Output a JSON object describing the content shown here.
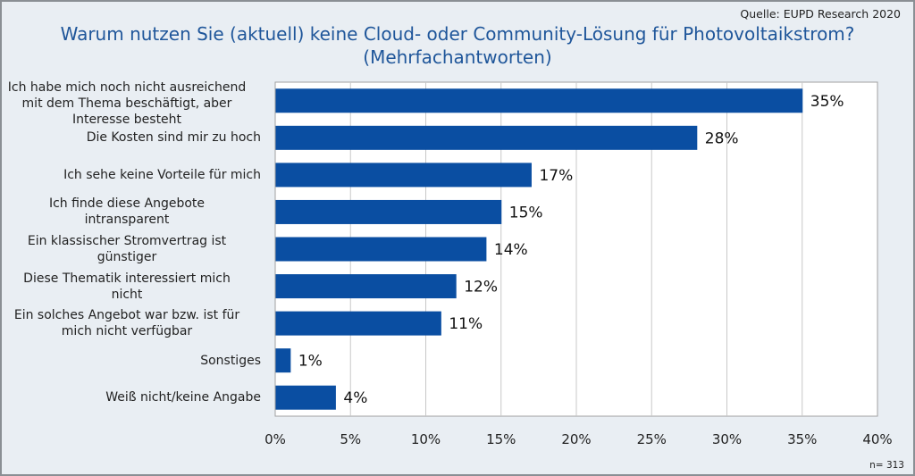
{
  "chart_data": {
    "type": "bar",
    "orientation": "horizontal",
    "title": "Warum nutzen Sie (aktuell) keine Cloud- oder Community-Lösung für Photovoltaikstrom?",
    "subtitle": "(Mehrfachantworten)",
    "source": "Quelle:  EUPD Research 2020",
    "note": "n= 313",
    "categories": [
      [
        "Ich habe mich noch nicht ausreichend",
        "mit dem Thema beschäftigt, aber",
        "Interesse besteht"
      ],
      [
        "Die Kosten sind mir zu hoch"
      ],
      [
        "Ich sehe keine Vorteile für mich"
      ],
      [
        "Ich finde diese Angebote",
        "intransparent"
      ],
      [
        "Ein klassischer Stromvertrag ist",
        "günstiger"
      ],
      [
        "Diese Thematik interessiert mich",
        "nicht"
      ],
      [
        "Ein solches Angebot war bzw. ist für",
        "mich nicht verfügbar"
      ],
      [
        "Sonstiges"
      ],
      [
        "Weiß nicht/keine Angabe"
      ]
    ],
    "values": [
      35,
      28,
      17,
      15,
      14,
      12,
      11,
      1,
      4
    ],
    "value_labels": [
      "35%",
      "28%",
      "17%",
      "15%",
      "14%",
      "12%",
      "11%",
      "1%",
      "4%"
    ],
    "xlabel": "",
    "ylabel": "",
    "xlim": [
      0,
      40
    ],
    "xticks": [
      "0%",
      "5%",
      "10%",
      "15%",
      "20%",
      "25%",
      "30%",
      "35%",
      "40%"
    ],
    "grid": true,
    "legend": "none",
    "colors": {
      "bar": "#0a4ea2",
      "title": "#1f569a",
      "background": "#e9eef3",
      "plot": "#ffffff",
      "grid": "#c8c8c8"
    }
  }
}
